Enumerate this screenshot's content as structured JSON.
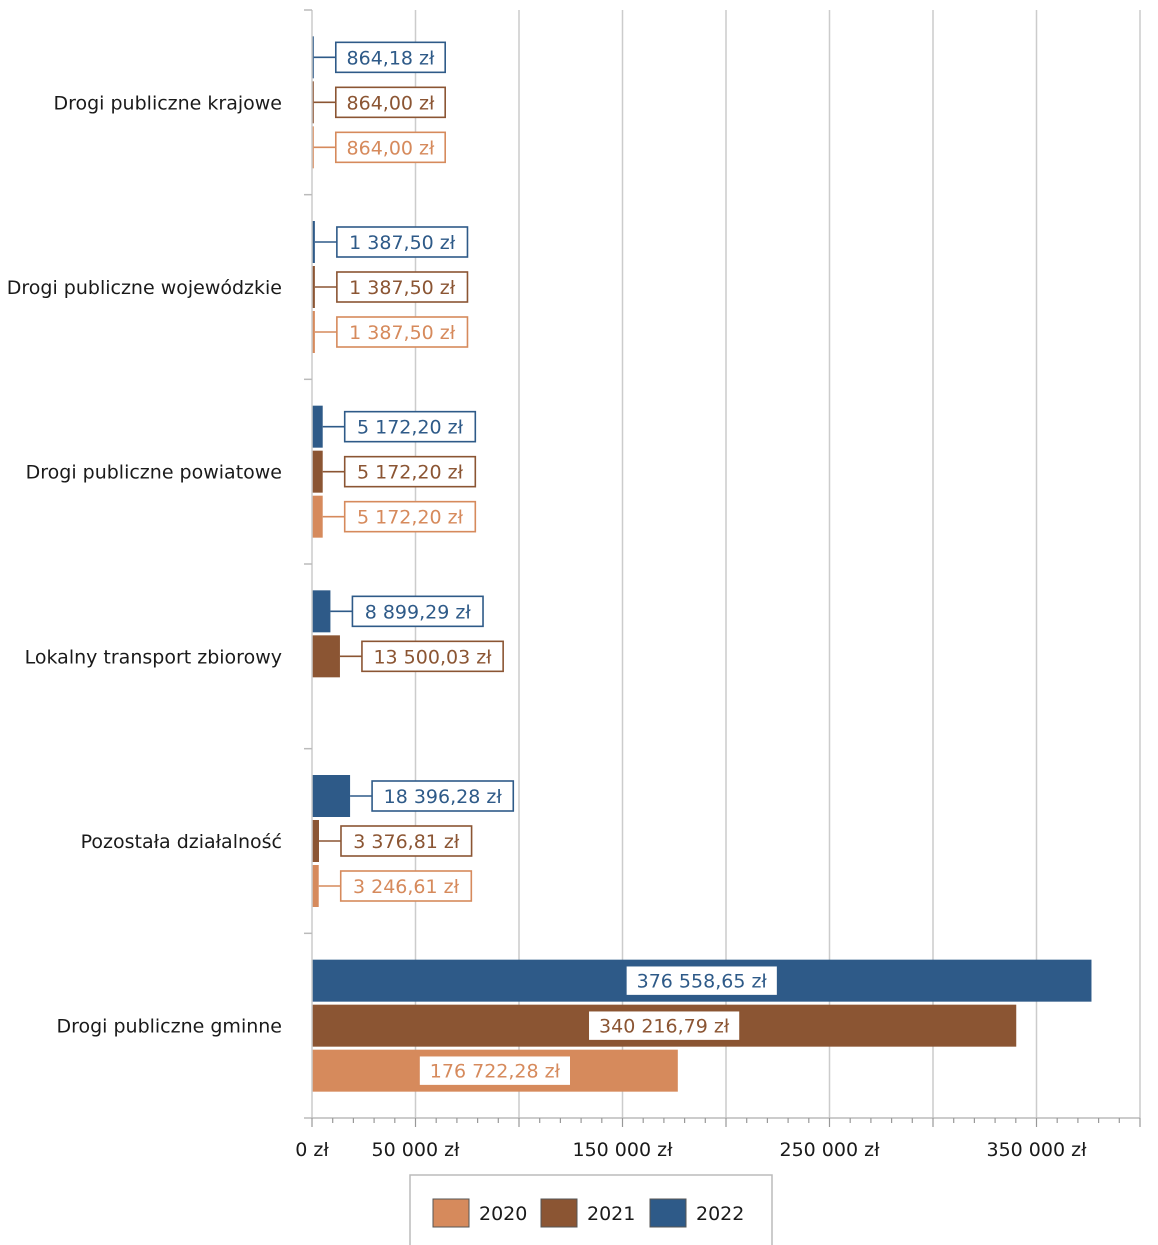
{
  "chart_data": {
    "type": "bar",
    "orientation": "horizontal",
    "categories": [
      "Drogi publiczne krajowe",
      "Drogi publiczne wojewódzkie",
      "Drogi publiczne powiatowe",
      "Lokalny transport zbiorowy",
      "Pozostała działalność",
      "Drogi publiczne gminne"
    ],
    "series": [
      {
        "name": "2022",
        "color": "#2e5a88",
        "values": [
          864.18,
          1387.5,
          5172.2,
          8899.29,
          18396.28,
          376558.65
        ],
        "labels": [
          "864,18 zł",
          "1 387,50 zł",
          "5 172,20 zł",
          "8 899,29 zł",
          "18 396,28 zł",
          "376 558,65 zł"
        ]
      },
      {
        "name": "2021",
        "color": "#8b5533",
        "values": [
          864.0,
          1387.5,
          5172.2,
          13500.03,
          3376.81,
          340216.79
        ],
        "labels": [
          "864,00 zł",
          "1 387,50 zł",
          "5 172,20 zł",
          "13 500,03 zł",
          "3 376,81 zł",
          "340 216,79 zł"
        ]
      },
      {
        "name": "2020",
        "color": "#d68a5c",
        "values": [
          864.0,
          1387.5,
          5172.2,
          null,
          3246.61,
          176722.28
        ],
        "labels": [
          "864,00 zł",
          "1 387,50 zł",
          "5 172,20 zł",
          null,
          "3 246,61 zł",
          "176 722,28 zł"
        ]
      }
    ],
    "xlim": [
      0,
      400000
    ],
    "x_tick_labels": [
      {
        "value": 0,
        "label": "0 zł"
      },
      {
        "value": 50000,
        "label": "50 000 zł"
      },
      {
        "value": 150000,
        "label": "150 000 zł"
      },
      {
        "value": 250000,
        "label": "250 000 zł"
      },
      {
        "value": 350000,
        "label": "350 000 zł"
      }
    ],
    "grid": true,
    "legend": {
      "position": "bottom",
      "order": [
        "2020",
        "2021",
        "2022"
      ]
    }
  }
}
